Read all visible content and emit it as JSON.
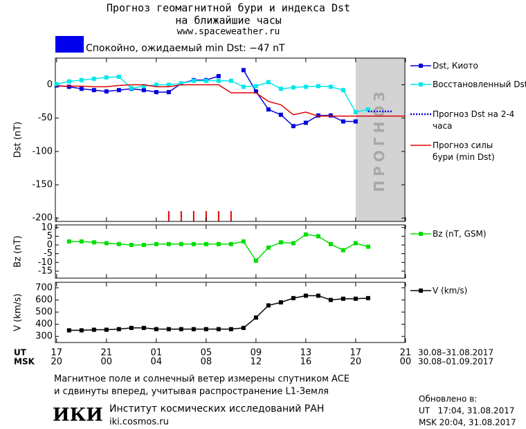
{
  "header": {
    "title": "Прогноз геомагнитной бури и индекса Dst",
    "subtitle": "на ближайшие часы",
    "url": "www.spaceweather.ru"
  },
  "status": {
    "text": "Спокойно, ожидаемый min Dst: −47 nT",
    "color": "#0000ee"
  },
  "chart_data": [
    {
      "type": "line",
      "ylabel": "Dst (nT)",
      "xlim": [
        -0.1,
        27.95
      ],
      "ylim": [
        -205,
        40
      ],
      "yticks": [
        0,
        -50,
        -100,
        -150,
        -200
      ],
      "series": [
        {
          "name": "Dst, Киото",
          "color": "#0000dd",
          "marker": "square",
          "x": [
            0,
            1,
            2,
            3,
            4,
            5,
            6,
            7,
            8,
            9,
            10,
            11,
            12,
            13,
            14,
            15,
            16,
            17,
            18,
            19,
            20,
            21,
            22,
            23,
            24
          ],
          "values": [
            -1,
            -3,
            -6,
            -8,
            -10,
            -8,
            -6,
            -8,
            -11,
            -11,
            2,
            7,
            7,
            13,
            null,
            22,
            -10,
            -37,
            -45,
            -62,
            -57,
            -46,
            -46,
            -55,
            -55
          ]
        },
        {
          "name": "Восстановленный Dst",
          "color": "#00e8e8",
          "marker": "square",
          "x": [
            0,
            1,
            2,
            3,
            4,
            5,
            6,
            7,
            8,
            9,
            10,
            11,
            12,
            13,
            14,
            15,
            16,
            17,
            18,
            19,
            20,
            21,
            22,
            23,
            24,
            25
          ],
          "values": [
            1,
            5,
            7,
            9,
            11,
            12,
            -5,
            -2,
            0,
            0,
            2,
            6,
            6,
            6,
            6,
            -3,
            -2,
            4,
            -6,
            -4,
            -3,
            -2,
            -3,
            -8,
            -41,
            -37
          ]
        },
        {
          "name": "Прогноз Dst на 2-4 часа",
          "color": "#0000dd",
          "marker": "none",
          "dash": true,
          "x": [
            25,
            27
          ],
          "values": [
            -40,
            -40
          ]
        },
        {
          "name": "Прогноз силы бури (min Dst)",
          "color": "#e00000",
          "marker": "none",
          "x": [
            0,
            1,
            2,
            3,
            4,
            5,
            6,
            7,
            8,
            9,
            10,
            11,
            12,
            13,
            14,
            15,
            16,
            17,
            18,
            19,
            20,
            21,
            22,
            23,
            24,
            25,
            26,
            27,
            28
          ],
          "values": [
            -2,
            -2,
            -2,
            -3,
            -3,
            -1,
            0,
            0,
            -3,
            -3,
            0,
            0,
            0,
            0,
            -12,
            -12,
            -12,
            -25,
            -30,
            -45,
            -41,
            -47,
            -47,
            -47,
            -47,
            -47,
            -47,
            -47,
            -47
          ]
        }
      ],
      "forecast_zone": {
        "x": [
          24,
          28
        ],
        "label": "ПРОГНОЗ",
        "color": "#d3d3d3"
      },
      "storm_marks": {
        "x": [
          9,
          10,
          11,
          12,
          13,
          14
        ],
        "color": "#e00000"
      }
    },
    {
      "type": "line",
      "ylabel": "Bz (nT)",
      "xlim": [
        -0.1,
        27.95
      ],
      "ylim": [
        -19,
        11.5
      ],
      "yticks": [
        10,
        5,
        0,
        -5,
        -10,
        -15
      ],
      "series": [
        {
          "name": "Bz (nT, GSM)",
          "color": "#00dd00",
          "marker": "square",
          "x": [
            1,
            2,
            3,
            4,
            5,
            6,
            7,
            8,
            9,
            10,
            11,
            12,
            13,
            14,
            15,
            16,
            17,
            18,
            19,
            20,
            21,
            22,
            23,
            24,
            25
          ],
          "values": [
            2,
            2,
            1.5,
            1,
            0.5,
            0,
            0,
            0.5,
            0.5,
            0.5,
            0.5,
            0.5,
            0.5,
            0.5,
            2,
            -9,
            -1.5,
            1.5,
            1,
            6,
            5,
            0.5,
            -3,
            1,
            -1
          ]
        }
      ]
    },
    {
      "type": "line",
      "ylabel": "V (km/s)",
      "xlim": [
        -0.1,
        27.95
      ],
      "ylim": [
        250,
        745
      ],
      "yticks": [
        700,
        600,
        500,
        400,
        300
      ],
      "series": [
        {
          "name": "V (km/s)",
          "color": "#000000",
          "marker": "square",
          "x": [
            1,
            2,
            3,
            4,
            5,
            6,
            7,
            8,
            9,
            10,
            11,
            12,
            13,
            14,
            15,
            16,
            17,
            18,
            19,
            20,
            21,
            22,
            23,
            24,
            25
          ],
          "values": [
            350,
            350,
            355,
            355,
            360,
            370,
            370,
            360,
            360,
            360,
            360,
            360,
            360,
            360,
            370,
            455,
            555,
            580,
            615,
            635,
            635,
            600,
            610,
            610,
            615
          ]
        }
      ],
      "xrows": [
        "UT",
        "MSK"
      ],
      "xticks": [
        {
          "value": 0,
          "label": "17"
        },
        {
          "value": 4,
          "label": "21"
        },
        {
          "value": 8,
          "label": "01"
        },
        {
          "value": 12,
          "label": "05"
        },
        {
          "value": 16,
          "label": "09"
        },
        {
          "value": 20,
          "label": "13"
        },
        {
          "value": 24,
          "label": "17"
        },
        {
          "value": 28,
          "label": "21"
        }
      ],
      "xticks2": [
        {
          "value": 0,
          "label": "20"
        },
        {
          "value": 4,
          "label": "00"
        },
        {
          "value": 8,
          "label": "04"
        },
        {
          "value": 12,
          "label": "08"
        },
        {
          "value": 16,
          "label": "12"
        },
        {
          "value": 20,
          "label": "16"
        },
        {
          "value": 24,
          "label": "20"
        },
        {
          "value": 28,
          "label": "00"
        }
      ],
      "date_ranges": [
        "30.08–31.08.2017",
        "30.08–01.09.2017"
      ]
    }
  ],
  "footer": {
    "note_lines": [
      "Магнитное поле и солнечный ветер измерены спутником ACE",
      "и сдвинуты вперед, учитывая распространение L1-Земля"
    ],
    "logo": "ИКИ",
    "institute": "Институт космических исследований РАН",
    "site": "iki.cosmos.ru",
    "updated_label": "Обновлено в:",
    "updated_ut": "UT   17:04, 31.08.2017",
    "updated_msk": "MSK 20:04, 31.08.2017"
  }
}
